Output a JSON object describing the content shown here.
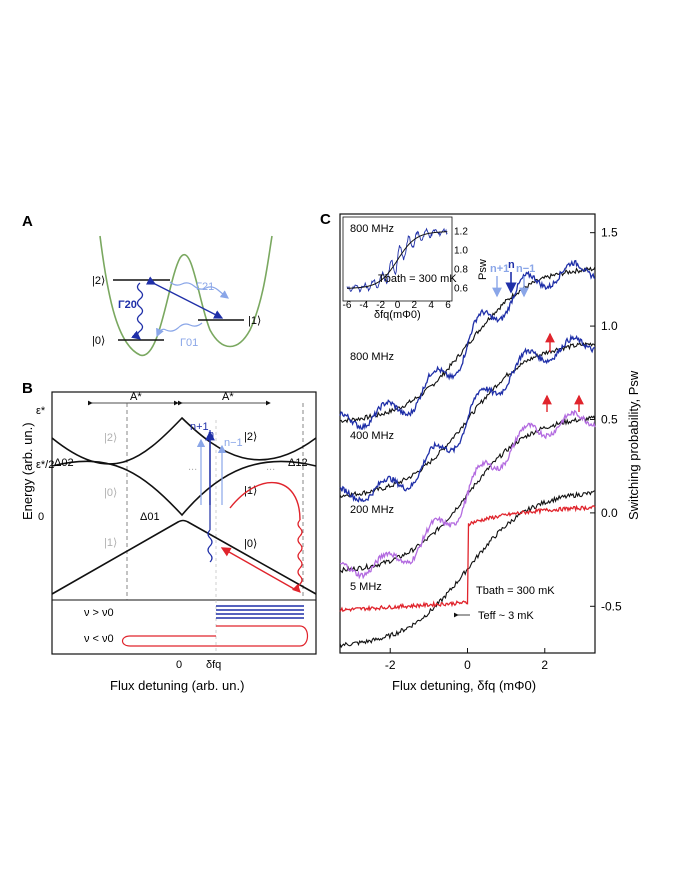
{
  "panel_a": {
    "label": "A",
    "state_2": "|2⟩",
    "state_1": "|1⟩",
    "state_0": "|0⟩",
    "gamma_20": "Γ20",
    "gamma_21": "Γ21",
    "gamma_01": "Γ01"
  },
  "panel_b": {
    "label": "B",
    "y_axis": "Energy (arb. un.)",
    "x_axis": "Flux detuning (arb. un.)",
    "amp_left": "A*",
    "amp_right": "A*",
    "eps_star": "ε*",
    "eps_half": "ε*/2",
    "zero_y": "0",
    "zero_x": "0",
    "df_q": "δfq",
    "delta_02": "Δ02",
    "delta_01": "Δ01",
    "delta_12": "Δ12",
    "level_2_right": "|2⟩",
    "level_1_right": "|1⟩",
    "level_0_right": "|0⟩",
    "level_2_left": "|2⟩",
    "level_0_left": "|0⟩",
    "level_1_left": "|1⟩",
    "n_plus": "n+1",
    "n": "n",
    "n_minus": "n−1",
    "dots": "...",
    "nu_greater": "ν > ν0",
    "nu_less": "ν < ν0"
  },
  "panel_c": {
    "label": "C",
    "x_axis": "Flux detuning, δfq (mΦ0)",
    "y_axis": "Switching probability, Psw",
    "inset_freq": "800 MHz",
    "inset_tbath": "Tbath = 300 mK",
    "inset_xlabel": "δfq(mΦ0)",
    "inset_ylabel": "Psw",
    "peak_n_plus": "n+1",
    "peak_n": "n",
    "peak_n_minus": "n−1",
    "trace_800": "800 MHz",
    "trace_400": "400 MHz",
    "trace_200": "200 MHz",
    "trace_5": "5 MHz",
    "tbath": "Tbath = 300 mK",
    "teff": "Teff ~ 3 mK",
    "colors": {
      "blue": "#1f2fa8",
      "light_blue": "#8aa6e8",
      "purple": "#b36be0",
      "red": "#e0242c",
      "green": "#7aa860",
      "black": "#111111"
    }
  },
  "chart_data": {
    "type": "line",
    "title": "",
    "xlabel": "Flux detuning, δfq (mΦ0)",
    "ylabel": "Switching probability, Psw",
    "xlim": [
      -3.3,
      3.3
    ],
    "ylim": [
      -0.75,
      1.6
    ],
    "x_ticks": [
      "-2",
      "0",
      "2"
    ],
    "x_tick_values": [
      -2,
      0,
      2
    ],
    "y_ticks": [
      "-0.5",
      "0.0",
      "0.5",
      "1.0",
      "1.5"
    ],
    "y_tick_values": [
      -0.5,
      0.0,
      0.5,
      1.0,
      1.5
    ],
    "series": [
      {
        "name": "800 MHz",
        "offset": 0.9,
        "osc_amp": 0.09,
        "color": "#1f2fa8"
      },
      {
        "name": "400 MHz",
        "offset": 0.5,
        "osc_amp": 0.08,
        "color": "#1f2fa8"
      },
      {
        "name": "200 MHz",
        "offset": 0.1,
        "osc_amp": 0.08,
        "color": "#b36be0"
      },
      {
        "name": "5 MHz",
        "offset": -0.3,
        "step_at": 0.0,
        "color": "#e0242c"
      }
    ],
    "reference_black_offsets": [
      0.9,
      0.5,
      0.1,
      -0.3
    ],
    "inset": {
      "xlim": [
        -6,
        6
      ],
      "ylim": [
        0.5,
        1.3
      ],
      "x_ticks": [
        "-6",
        "-4",
        "-2",
        "0",
        "2",
        "4",
        "6"
      ],
      "y_ticks": [
        "0.6",
        "0.8",
        "1.0",
        "1.2"
      ]
    }
  }
}
